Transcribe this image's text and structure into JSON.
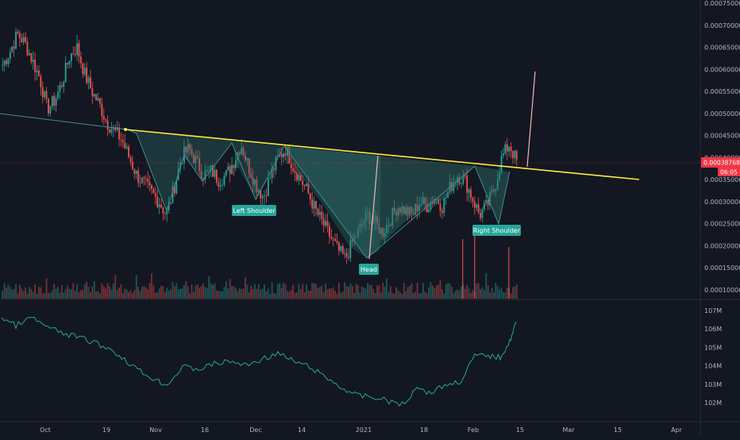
{
  "chart_data": {
    "type": "candlestick",
    "price_axis": {
      "ticks": [
        "0.00075000",
        "0.00070000",
        "0.00065000",
        "0.00060000",
        "0.00055000",
        "0.00050000",
        "0.00045000",
        "0.00040000",
        "0.00035000",
        "0.00030000",
        "0.00025000",
        "0.00020000",
        "0.00015000",
        "0.00010000"
      ]
    },
    "current_price": {
      "value": "0.00038768",
      "countdown": "06:05",
      "color": "#f23645"
    },
    "lower_pane": {
      "ticks": [
        "107M",
        "106M",
        "105M",
        "104M",
        "103M",
        "102M"
      ],
      "color": "#26a69a"
    },
    "time_axis": {
      "labels": [
        "Oct",
        "19",
        "Nov",
        "16",
        "Dec",
        "14",
        "2021",
        "18",
        "Feb",
        "15",
        "Mar",
        "15",
        "Apr"
      ]
    },
    "pattern_labels": {
      "left_shoulder": "Left Shoulder",
      "head": "Head",
      "right_shoulder": "Right Shoulder"
    },
    "neckline": {
      "color": "#ffeb3b",
      "start_price": 0.000462,
      "end_price": 0.000355
    },
    "pattern_fill_color": "#2f6f6a",
    "colors": {
      "up": "#26a69a",
      "down": "#ef5350",
      "background": "#131722",
      "target_line": "#f7b5b5"
    },
    "candles_sample_close": [
      0.00061,
      0.00064,
      0.00068,
      0.00066,
      0.00062,
      0.00058,
      0.00051,
      0.00053,
      0.00057,
      0.00063,
      0.00065,
      0.00059,
      0.00055,
      0.00052,
      0.00048,
      0.00046,
      0.00044,
      0.0004,
      0.00036,
      0.00034,
      0.00032,
      0.0003,
      0.00027,
      0.00033,
      0.0004,
      0.00042,
      0.00039,
      0.00036,
      0.00037,
      0.00035,
      0.00036,
      0.00039,
      0.00043,
      0.00038,
      0.00034,
      0.00031,
      0.00036,
      0.0004,
      0.00042,
      0.00038,
      0.00035,
      0.00032,
      0.00028,
      0.00025,
      0.00022,
      0.00019,
      0.00017,
      0.00021,
      0.00024,
      0.00027,
      0.00025,
      0.00023,
      0.00026,
      0.00029,
      0.00028,
      0.00027,
      0.0003,
      0.00029,
      0.00031,
      0.00029,
      0.00033,
      0.00036,
      0.00035,
      0.00031,
      0.00027,
      0.00029,
      0.00033,
      0.0004,
      0.00043,
      0.00039
    ]
  }
}
